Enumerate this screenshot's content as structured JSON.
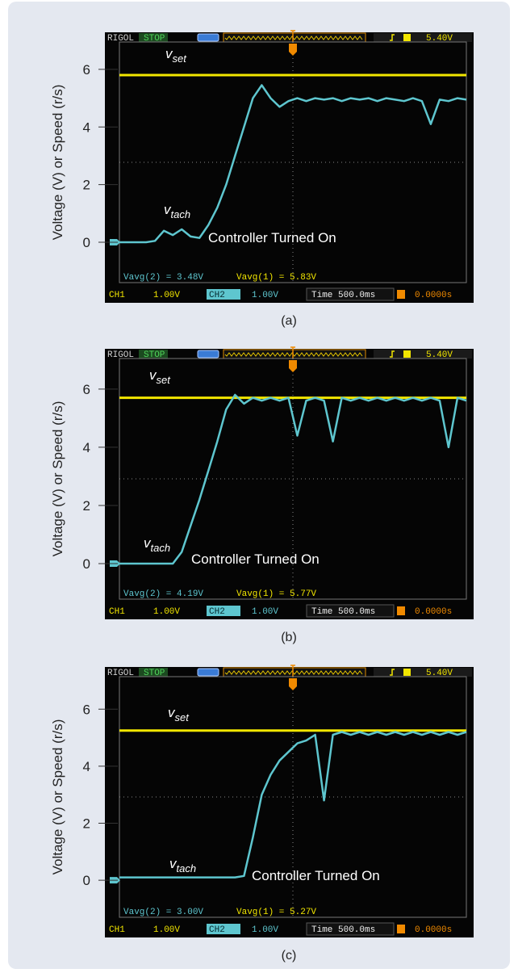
{
  "chart_data": [
    {
      "type": "line",
      "ylabel": "Voltage (V) or Speed (r/s)",
      "caption": "(a)",
      "annotation": "Controller Turned On",
      "ylim": [
        -1.4,
        6.95
      ],
      "yticks": [
        0,
        2,
        4,
        6
      ],
      "scope": {
        "brand": "RIGOL",
        "state": "STOP",
        "trigger_level": "5.40V",
        "measurements": [
          "Vavg(2) = 3.48V",
          "Vavg(1) = 5.83V"
        ],
        "ch1": "CH1",
        "ch1_scale": "1.00V",
        "ch2": "CH2",
        "ch2_scale": "1.00V",
        "timebase": "Time 500.0ms",
        "trigger_offset": "0.0000s"
      },
      "series": [
        {
          "name": "vset",
          "color": "#f2e600",
          "values": [
            5.8,
            5.8
          ]
        },
        {
          "name": "vtach",
          "color": "#5ec6cf",
          "values": [
            0,
            0,
            0,
            0,
            0.05,
            0.4,
            0.25,
            0.45,
            0.2,
            0.15,
            0.6,
            1.2,
            2.0,
            3.0,
            4.0,
            5.0,
            5.45,
            5.0,
            4.7,
            4.9,
            5.0,
            4.9,
            5.0,
            4.95,
            5.0,
            4.9,
            5.0,
            4.95,
            5.0,
            4.9,
            5.0,
            4.95,
            4.9,
            5.0,
            4.9,
            4.1,
            4.95,
            4.9,
            5.0,
            4.95
          ]
        }
      ]
    },
    {
      "type": "line",
      "ylabel": "Voltage (V) or Speed (r/s)",
      "caption": "(b)",
      "annotation": "Controller Turned On",
      "ylim": [
        -1.22,
        7.05
      ],
      "yticks": [
        0,
        2,
        4,
        6
      ],
      "scope": {
        "brand": "RIGOL",
        "state": "STOP",
        "trigger_level": "5.40V",
        "measurements": [
          "Vavg(2) = 4.19V",
          "Vavg(1) = 5.77V"
        ],
        "ch1": "CH1",
        "ch1_scale": "1.00V",
        "ch2": "CH2",
        "ch2_scale": "1.00V",
        "timebase": "Time 500.0ms",
        "trigger_offset": "0.0000s"
      },
      "series": [
        {
          "name": "vset",
          "color": "#f2e600",
          "values": [
            5.7,
            5.7
          ]
        },
        {
          "name": "vtach",
          "color": "#5ec6cf",
          "values": [
            0,
            0,
            0,
            0,
            0,
            0,
            0,
            0.4,
            1.3,
            2.2,
            3.2,
            4.2,
            5.3,
            5.8,
            5.5,
            5.7,
            5.6,
            5.7,
            5.6,
            5.7,
            4.4,
            5.6,
            5.7,
            5.6,
            4.2,
            5.7,
            5.6,
            5.7,
            5.6,
            5.7,
            5.6,
            5.7,
            5.6,
            5.7,
            5.6,
            5.7,
            5.6,
            4.0,
            5.7,
            5.6
          ]
        }
      ]
    },
    {
      "type": "line",
      "ylabel": "Voltage (V) or Speed (r/s)",
      "caption": "(c)",
      "annotation": "Controller Turned On",
      "ylim": [
        -1.3,
        7.14
      ],
      "yticks": [
        0,
        2,
        4,
        6
      ],
      "scope": {
        "brand": "RIGOL",
        "state": "STOP",
        "trigger_level": "5.40V",
        "measurements": [
          "Vavg(2) = 3.00V",
          "Vavg(1) = 5.27V"
        ],
        "ch1": "CH1",
        "ch1_scale": "1.00V",
        "ch2": "CH2",
        "ch2_scale": "1.00V",
        "timebase": "Time 500.0ms",
        "trigger_offset": "0.0000s"
      },
      "series": [
        {
          "name": "vset",
          "color": "#f2e600",
          "values": [
            5.25,
            5.25
          ]
        },
        {
          "name": "vtach",
          "color": "#5ec6cf",
          "values": [
            0.1,
            0.1,
            0.1,
            0.1,
            0.1,
            0.1,
            0.1,
            0.1,
            0.1,
            0.1,
            0.1,
            0.1,
            0.1,
            0.1,
            0.15,
            1.5,
            3.0,
            3.7,
            4.2,
            4.5,
            4.8,
            4.9,
            5.1,
            2.8,
            5.1,
            5.2,
            5.1,
            5.2,
            5.1,
            5.2,
            5.1,
            5.2,
            5.1,
            5.2,
            5.1,
            5.2,
            5.1,
            5.2,
            5.1,
            5.2
          ]
        }
      ]
    }
  ]
}
